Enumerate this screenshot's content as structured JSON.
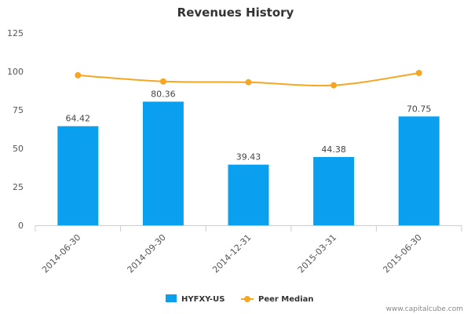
{
  "chart_data": {
    "type": "bar",
    "title": "Revenues History",
    "categories": [
      "2014-06-30",
      "2014-09-30",
      "2014-12-31",
      "2015-03-31",
      "2015-06-30"
    ],
    "series": [
      {
        "name": "HYFXY-US",
        "type": "bar",
        "color": "#0aa0ef",
        "values": [
          64.42,
          80.36,
          39.43,
          44.38,
          70.75
        ],
        "labels": [
          "64.42",
          "80.36",
          "39.43",
          "44.38",
          "70.75"
        ]
      },
      {
        "name": "Peer Median",
        "type": "line",
        "color": "#f5a623",
        "values": [
          97.5,
          93.5,
          93.0,
          91.0,
          99.0
        ]
      }
    ],
    "ylim": [
      0,
      125
    ],
    "yticks": [
      "0",
      "25",
      "50",
      "75",
      "100",
      "125"
    ],
    "grid": false,
    "legend": "bottom-center"
  },
  "credit": "www.capitalcube.com"
}
